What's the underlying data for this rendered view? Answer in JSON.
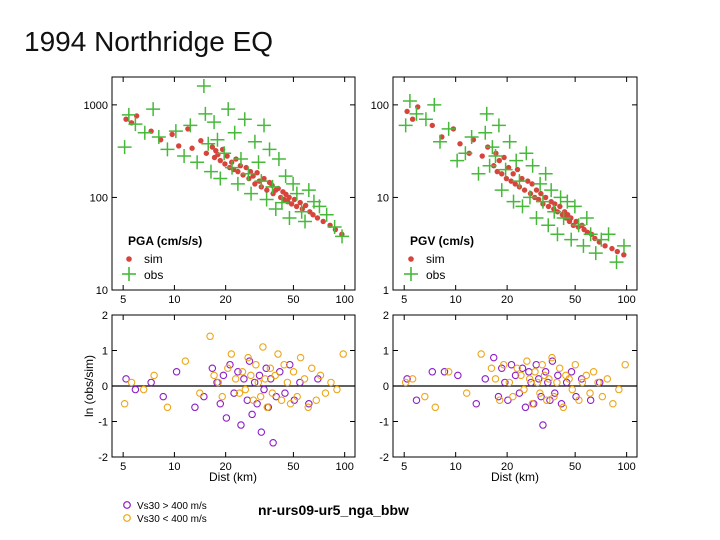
{
  "slide": {
    "title": "1994 Northridge EQ"
  },
  "colors": {
    "sim": "#d6443c",
    "obs": "#46b93b",
    "vs30_high": "#8c1ec8",
    "vs30_low": "#eda619",
    "zero_line": "#000000"
  },
  "chart_data": [
    {
      "type": "scatter",
      "id": "pga",
      "xscale": "log",
      "yscale": "log",
      "xlim": [
        4.3,
        115
      ],
      "ylim": [
        10,
        2000
      ],
      "xticks": [
        5,
        10,
        20,
        50,
        100
      ],
      "xtick_labels": [
        "5",
        "10",
        "20",
        "50",
        "100"
      ],
      "yticks": [
        10,
        100,
        1000
      ],
      "ytick_labels": [
        "10",
        "100",
        "1000"
      ],
      "legend_title": "PGA (cm/s/s)",
      "series": [
        {
          "name": "sim",
          "marker": "dot",
          "x": [
            5.2,
            5.6,
            6.0,
            7.3,
            8.3,
            9.7,
            10.6,
            12.0,
            12.7,
            14.3,
            15.4,
            16.7,
            17.2,
            17.5,
            18.0,
            18.6,
            19.2,
            19.8,
            20.4,
            21.1,
            21.7,
            22.3,
            23.0,
            23.6,
            24.4,
            25.3,
            26.4,
            27.4,
            28.0,
            29.0,
            29.7,
            30.6,
            31.5,
            32.4,
            33.6,
            34.9,
            36.2,
            37.5,
            38.0,
            39.4,
            40.7,
            42.1,
            43.4,
            44.2,
            45.2,
            46.3,
            47.2,
            48.8,
            50.7,
            52.2,
            54.8,
            56.4,
            59.0,
            62.4,
            65.2,
            69.2,
            74.8,
            82.1,
            88.2,
            96.3
          ],
          "y": [
            700,
            640,
            760,
            520,
            420,
            480,
            360,
            550,
            340,
            410,
            300,
            350,
            270,
            320,
            290,
            250,
            330,
            230,
            280,
            210,
            240,
            200,
            260,
            190,
            220,
            175,
            210,
            160,
            190,
            170,
            140,
            185,
            150,
            130,
            160,
            120,
            145,
            135,
            110,
            120,
            125,
            100,
            115,
            95,
            108,
            90,
            100,
            85,
            95,
            80,
            88,
            75,
            82,
            70,
            65,
            60,
            55,
            50,
            45,
            40
          ]
        },
        {
          "name": "obs",
          "marker": "plus",
          "x": [
            5.1,
            5.4,
            5.9,
            6.7,
            7.5,
            8.1,
            9.1,
            10.2,
            11.4,
            12.4,
            13.6,
            14.9,
            15.2,
            15.8,
            16.4,
            17.1,
            17.9,
            18.6,
            19.6,
            20.7,
            21.8,
            22.6,
            23.6,
            24.6,
            25.9,
            27.2,
            28.2,
            29.7,
            31.2,
            32.4,
            33.6,
            34.8,
            36.2,
            37.7,
            39.4,
            41.1,
            42.8,
            45.0,
            47.4,
            49.8,
            52.4,
            55.9,
            58.5,
            61.6,
            66.0,
            71.1,
            78.4,
            87.3,
            96.5
          ],
          "y": [
            350,
            780,
            620,
            500,
            900,
            450,
            330,
            520,
            280,
            600,
            240,
            1600,
            800,
            380,
            190,
            650,
            420,
            160,
            300,
            900,
            210,
            500,
            140,
            260,
            700,
            180,
            110,
            400,
            240,
            150,
            600,
            95,
            330,
            130,
            75,
            260,
            88,
            170,
            60,
            140,
            110,
            70,
            55,
            120,
            90,
            80,
            65,
            48,
            38
          ]
        }
      ]
    },
    {
      "type": "scatter",
      "id": "pgv",
      "xscale": "log",
      "yscale": "log",
      "xlim": [
        4.3,
        115
      ],
      "ylim": [
        1,
        200
      ],
      "xticks": [
        5,
        10,
        20,
        50,
        100
      ],
      "xtick_labels": [
        "5",
        "10",
        "20",
        "50",
        "100"
      ],
      "yticks": [
        1,
        10,
        100
      ],
      "ytick_labels": [
        "1",
        "10",
        "100"
      ],
      "legend_title": "PGV (cm/s)",
      "series": [
        {
          "name": "sim",
          "marker": "dot",
          "x": [
            5.2,
            5.6,
            6.0,
            7.3,
            8.3,
            9.7,
            10.6,
            12.0,
            12.7,
            14.3,
            15.4,
            16.7,
            17.2,
            17.5,
            18.0,
            18.6,
            19.2,
            19.8,
            20.4,
            21.1,
            21.7,
            22.3,
            23.0,
            23.6,
            24.4,
            25.3,
            26.4,
            27.4,
            28.0,
            29.0,
            29.7,
            30.6,
            31.5,
            32.4,
            33.6,
            34.9,
            36.2,
            37.5,
            38.0,
            39.4,
            40.7,
            42.1,
            43.4,
            44.2,
            45.2,
            46.3,
            47.2,
            48.8,
            50.7,
            52.2,
            54.8,
            56.4,
            59.0,
            62.4,
            65.2,
            69.2,
            74.8,
            82.1,
            88.2,
            96.3
          ],
          "y": [
            85,
            70,
            95,
            60,
            45,
            55,
            38,
            30,
            42,
            28,
            35,
            22,
            30,
            19,
            25,
            18,
            27,
            16,
            21,
            15,
            18,
            14,
            20,
            13,
            16,
            12,
            15,
            11,
            14,
            10,
            12,
            9.5,
            11,
            8.5,
            10,
            8,
            9,
            7.5,
            8.5,
            7,
            8,
            6.5,
            7,
            6,
            6.5,
            5.5,
            6,
            5,
            5.5,
            4.8,
            5,
            4.5,
            4.2,
            4,
            3.6,
            3.3,
            3,
            2.8,
            2.6,
            2.4
          ]
        },
        {
          "name": "obs",
          "marker": "plus",
          "x": [
            5.1,
            5.4,
            5.9,
            6.7,
            7.5,
            8.1,
            9.1,
            10.2,
            11.4,
            12.4,
            13.6,
            14.9,
            15.2,
            15.8,
            16.4,
            17.1,
            17.9,
            18.6,
            19.6,
            20.7,
            21.8,
            22.6,
            23.6,
            24.6,
            25.9,
            27.2,
            28.2,
            29.7,
            31.2,
            32.4,
            33.6,
            34.8,
            36.2,
            37.7,
            39.4,
            41.1,
            42.8,
            45.0,
            47.4,
            49.8,
            52.4,
            55.9,
            58.5,
            61.6,
            66.0,
            71.1,
            78.4,
            87.3,
            96.5
          ],
          "y": [
            60,
            110,
            80,
            70,
            100,
            40,
            55,
            25,
            30,
            45,
            18,
            50,
            80,
            22,
            35,
            28,
            60,
            12,
            20,
            40,
            9,
            25,
            15,
            8,
            30,
            10,
            22,
            6,
            14,
            9,
            18,
            5,
            12,
            7,
            4,
            10,
            6,
            9,
            3.5,
            8,
            5,
            3,
            6,
            4,
            2.5,
            3.5,
            4,
            2,
            3
          ]
        }
      ]
    },
    {
      "type": "scatter",
      "id": "pga_residual",
      "xscale": "log",
      "yscale": "linear",
      "xlim": [
        4.3,
        115
      ],
      "ylim": [
        -2,
        2
      ],
      "xticks": [
        5,
        10,
        20,
        50,
        100
      ],
      "xtick_labels": [
        "5",
        "10",
        "20",
        "50",
        "100"
      ],
      "yticks": [
        -2,
        -1,
        0,
        1,
        2
      ],
      "ytick_labels": [
        "-2",
        "-1",
        "0",
        "1",
        "2"
      ],
      "xlabel": "Dist (km)",
      "ylabel": "ln (obs/sim)",
      "series": [
        {
          "name": "Vs30 > 400 m/s",
          "marker": "circle",
          "x": [
            5.2,
            5.9,
            7.3,
            8.6,
            10.3,
            13.2,
            14.9,
            16.7,
            17.8,
            18.6,
            19.4,
            20.2,
            21.2,
            22.4,
            23.6,
            24.6,
            25.6,
            26.8,
            27.6,
            28.6,
            29.6,
            30.6,
            31.6,
            32.4,
            33.6,
            34.6,
            35.6,
            36.8,
            38.0,
            39.6,
            41.6,
            44.6,
            47.6,
            50.6,
            54.6,
            61.6,
            69.6
          ],
          "y": [
            0.2,
            -0.1,
            0.1,
            -0.3,
            0.4,
            -0.6,
            -0.3,
            0.5,
            0.1,
            -0.5,
            0.3,
            -0.9,
            0.6,
            -0.2,
            0.4,
            -1.1,
            0.2,
            -0.4,
            0.7,
            -0.8,
            0.1,
            -0.5,
            0.3,
            -1.3,
            -0.1,
            0.5,
            -0.6,
            0.2,
            -1.6,
            -0.3,
            0.4,
            -0.2,
            0.6,
            -0.4,
            0.1,
            -0.5,
            0.2
          ]
        },
        {
          "name": "Vs30 < 400 m/s",
          "marker": "circle",
          "x": [
            5.1,
            5.6,
            6.6,
            7.6,
            9.1,
            11.6,
            14.1,
            16.2,
            17.1,
            18.1,
            19.1,
            20.6,
            21.6,
            22.9,
            24.1,
            25.1,
            26.1,
            27.1,
            28.1,
            29.1,
            30.1,
            31.1,
            32.1,
            33.1,
            34.1,
            35.1,
            36.6,
            37.6,
            39.1,
            40.6,
            42.6,
            44.1,
            46.1,
            48.1,
            50.1,
            52.6,
            55.1,
            58.1,
            61.1,
            64.1,
            68.1,
            72.1,
            77.1,
            83.1,
            90.1,
            98.1
          ],
          "y": [
            -0.5,
            0.1,
            -0.1,
            0.3,
            -0.6,
            0.7,
            -0.2,
            1.4,
            0.3,
            0.1,
            -0.3,
            0.5,
            0.9,
            0.2,
            -0.2,
            0.4,
            -0.1,
            0.8,
            0.3,
            -0.4,
            0.6,
            0.1,
            -0.3,
            1.1,
            0.2,
            -0.6,
            0.5,
            -0.2,
            0.3,
            0.9,
            -0.4,
            0.6,
            0.1,
            -0.5,
            0.4,
            -0.3,
            0.8,
            0.2,
            -0.6,
            0.5,
            -0.4,
            0.3,
            -0.2,
            0.1,
            -0.1,
            0.9
          ]
        }
      ]
    },
    {
      "type": "scatter",
      "id": "pgv_residual",
      "xscale": "log",
      "yscale": "linear",
      "xlim": [
        4.3,
        115
      ],
      "ylim": [
        -2,
        2
      ],
      "xticks": [
        5,
        10,
        20,
        50,
        100
      ],
      "xtick_labels": [
        "5",
        "10",
        "20",
        "50",
        "100"
      ],
      "yticks": [
        -2,
        -1,
        0,
        1,
        2
      ],
      "ytick_labels": [
        "-2",
        "-1",
        "0",
        "1",
        "2"
      ],
      "xlabel": "Dist (km)",
      "series": [
        {
          "name": "Vs30 > 400 m/s",
          "marker": "circle",
          "x": [
            5.2,
            5.9,
            7.3,
            8.6,
            10.3,
            13.2,
            14.9,
            16.7,
            17.8,
            18.6,
            19.4,
            20.2,
            21.2,
            22.4,
            23.6,
            24.6,
            25.6,
            26.8,
            27.6,
            28.6,
            29.6,
            30.6,
            31.6,
            32.4,
            33.6,
            34.6,
            35.6,
            36.8,
            38.0,
            39.6,
            41.6,
            44.6,
            47.6,
            50.6,
            54.6,
            61.6,
            69.6
          ],
          "y": [
            0.2,
            -0.4,
            0.4,
            0.4,
            0.3,
            -0.5,
            0.2,
            0.8,
            -0.3,
            0.5,
            0.1,
            -0.4,
            0.6,
            0.3,
            -0.2,
            0.5,
            -0.6,
            0.4,
            0.1,
            -0.5,
            0.6,
            0.2,
            -0.3,
            -1.1,
            0.4,
            0.1,
            -0.4,
            0.7,
            -0.2,
            0.3,
            -0.5,
            0.1,
            0.4,
            -0.3,
            0.2,
            -0.4,
            0.1
          ]
        },
        {
          "name": "Vs30 < 400 m/s",
          "marker": "circle",
          "x": [
            5.1,
            5.6,
            6.6,
            7.6,
            9.1,
            11.6,
            14.1,
            16.2,
            17.1,
            18.1,
            19.1,
            20.6,
            21.6,
            22.9,
            24.1,
            25.1,
            26.1,
            27.1,
            28.1,
            29.1,
            30.1,
            31.1,
            32.1,
            33.1,
            34.1,
            35.1,
            36.6,
            37.6,
            39.1,
            40.6,
            42.6,
            44.1,
            46.1,
            48.1,
            50.1,
            52.6,
            55.1,
            58.1,
            61.1,
            64.1,
            68.1,
            72.1,
            77.1,
            83.1,
            90.1,
            98.1
          ],
          "y": [
            0.1,
            0.2,
            -0.3,
            -0.6,
            0.4,
            -0.2,
            0.9,
            0.5,
            0.2,
            -0.4,
            0.6,
            0.1,
            -0.3,
            0.5,
            0.3,
            -0.1,
            0.7,
            0.2,
            -0.5,
            0.4,
            0.1,
            -0.2,
            0.6,
            0.3,
            -0.4,
            0.2,
            0.8,
            -0.3,
            0.1,
            0.5,
            -0.6,
            0.3,
            0.2,
            -0.1,
            0.6,
            -0.4,
            0.1,
            0.3,
            -0.2,
            0.4,
            0.1,
            -0.3,
            0.2,
            -0.5,
            -0.1,
            0.6
          ]
        }
      ]
    }
  ],
  "legend": {
    "sim_label": "sim",
    "obs_label": "obs",
    "vs30_high": "Vs30 > 400 m/s",
    "vs30_low": "Vs30 < 400 m/s"
  },
  "caption": "nr-urs09-ur5_nga_bbw"
}
